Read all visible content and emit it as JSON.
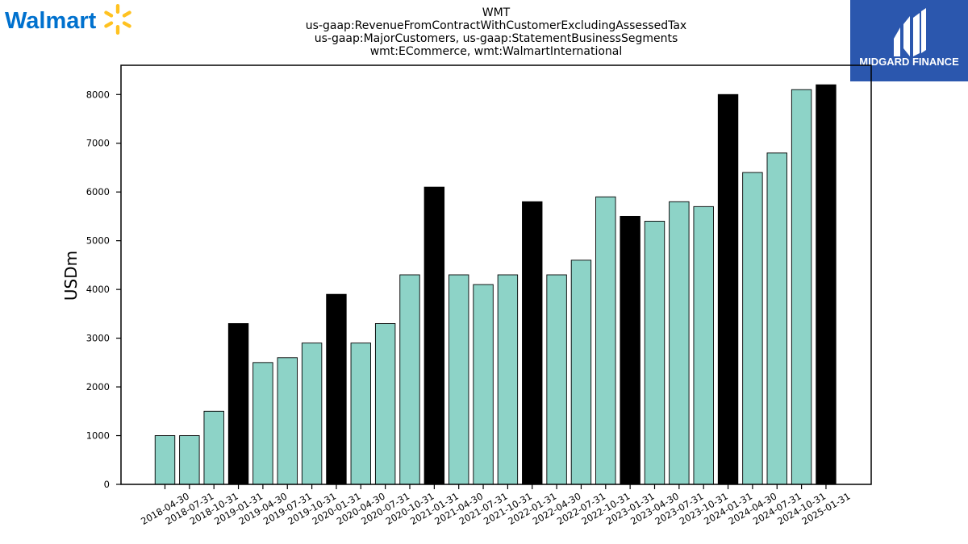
{
  "logos": {
    "left_text": "Walmart",
    "left_colors": {
      "text": "#0071CE",
      "spark": "#FFC220"
    },
    "right_text": "MIDGARD FINANCE",
    "right_colors": {
      "bg": "#2B57AE",
      "fg": "#FFFFFF"
    }
  },
  "chart_data": {
    "type": "bar",
    "title_lines": [
      "WMT",
      "us-gaap:RevenueFromContractWithCustomerExcludingAssessedTax",
      "us-gaap:MajorCustomers, us-gaap:StatementBusinessSegments",
      "wmt:ECommerce, wmt:WalmartInternational"
    ],
    "xlabel": "",
    "ylabel": "USDm",
    "ylim": [
      0,
      8600
    ],
    "yticks": [
      0,
      1000,
      2000,
      3000,
      4000,
      5000,
      6000,
      7000,
      8000
    ],
    "grid": false,
    "colors": {
      "regular": "#8DD3C7",
      "highlight": "#000000",
      "edge": "#000000"
    },
    "categories": [
      "2018-04-30",
      "2018-07-31",
      "2018-10-31",
      "2019-01-31",
      "2019-04-30",
      "2019-07-31",
      "2019-10-31",
      "2020-01-31",
      "2020-04-30",
      "2020-07-31",
      "2020-10-31",
      "2021-01-31",
      "2021-04-30",
      "2021-07-31",
      "2021-10-31",
      "2022-01-31",
      "2022-04-30",
      "2022-07-31",
      "2022-10-31",
      "2023-01-31",
      "2023-04-30",
      "2023-07-31",
      "2023-10-31",
      "2024-01-31",
      "2024-04-30",
      "2024-07-31",
      "2024-10-31",
      "2025-01-31"
    ],
    "values": [
      1000,
      1000,
      1500,
      3300,
      2500,
      2600,
      2900,
      3900,
      2900,
      3300,
      4300,
      6100,
      4300,
      4100,
      4300,
      5800,
      4300,
      4600,
      5900,
      5500,
      5400,
      5800,
      5700,
      8000,
      6400,
      6800,
      8100,
      8200
    ],
    "highlighted": [
      false,
      false,
      false,
      true,
      false,
      false,
      false,
      true,
      false,
      false,
      false,
      true,
      false,
      false,
      false,
      true,
      false,
      false,
      false,
      true,
      false,
      false,
      false,
      true,
      false,
      false,
      false,
      true
    ]
  }
}
